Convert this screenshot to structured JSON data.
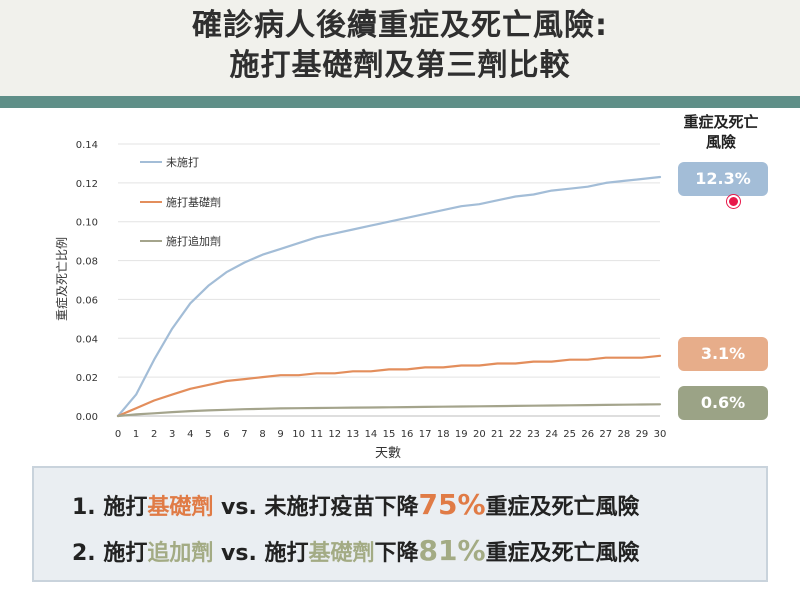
{
  "header": {
    "title_line1": "確診病人後續重症及死亡風險:",
    "title_line2": "施打基礎劑及第三劑比較"
  },
  "risk_panel": {
    "title_line1": "重症及死亡",
    "title_line2": "風險",
    "badges": [
      {
        "label": "12.3%",
        "color": "#a3bdd7"
      },
      {
        "label": "3.1%",
        "color": "#e7ad8a"
      },
      {
        "label": "0.6%",
        "color": "#9ba386"
      }
    ]
  },
  "summary": {
    "line1": {
      "num": "1.",
      "part1": "施打",
      "hl1": "基礎劑",
      "part2": " vs. 未施打疫苗下降",
      "pct": "75%",
      "part3": "重症及死亡風險"
    },
    "line2": {
      "num": "2.",
      "part1": "施打",
      "hl1": "追加劑",
      "part2": " vs. 施打",
      "hl2": "基礎劑",
      "part3": "下降",
      "pct": "81%",
      "part4": "重症及死亡風險"
    }
  },
  "chart_data": {
    "type": "line",
    "title": "",
    "xlabel": "天數",
    "ylabel": "重症及死亡比例",
    "x": [
      0,
      1,
      2,
      3,
      4,
      5,
      6,
      7,
      8,
      9,
      10,
      11,
      12,
      13,
      14,
      15,
      16,
      17,
      18,
      19,
      20,
      21,
      22,
      23,
      24,
      25,
      26,
      27,
      28,
      29,
      30
    ],
    "xlim": [
      0,
      30
    ],
    "ylim": [
      0,
      0.14
    ],
    "yticks": [
      "0.00",
      "0.02",
      "0.04",
      "0.06",
      "0.08",
      "0.10",
      "0.12",
      "0.14"
    ],
    "grid": true,
    "legend_position": "top-left",
    "series": [
      {
        "name": "未施打",
        "color": "#a3bdd7",
        "values": [
          0,
          0.011,
          0.029,
          0.045,
          0.058,
          0.067,
          0.074,
          0.079,
          0.083,
          0.086,
          0.089,
          0.092,
          0.094,
          0.096,
          0.098,
          0.1,
          0.102,
          0.104,
          0.106,
          0.108,
          0.109,
          0.111,
          0.113,
          0.114,
          0.116,
          0.117,
          0.118,
          0.12,
          0.121,
          0.122,
          0.123
        ]
      },
      {
        "name": "施打基礎劑",
        "color": "#e38e5c",
        "values": [
          0,
          0.004,
          0.008,
          0.011,
          0.014,
          0.016,
          0.018,
          0.019,
          0.02,
          0.021,
          0.021,
          0.022,
          0.022,
          0.023,
          0.023,
          0.024,
          0.024,
          0.025,
          0.025,
          0.026,
          0.026,
          0.027,
          0.027,
          0.028,
          0.028,
          0.029,
          0.029,
          0.03,
          0.03,
          0.03,
          0.031
        ]
      },
      {
        "name": "施打追加劑",
        "color": "#a4a48c",
        "values": [
          0,
          0.0008,
          0.0014,
          0.002,
          0.0025,
          0.0029,
          0.0032,
          0.0035,
          0.0037,
          0.0039,
          0.004,
          0.0041,
          0.0042,
          0.0043,
          0.0044,
          0.0045,
          0.0046,
          0.0047,
          0.0048,
          0.0049,
          0.005,
          0.0051,
          0.0052,
          0.0053,
          0.0054,
          0.0055,
          0.0056,
          0.0057,
          0.0058,
          0.0059,
          0.006
        ]
      }
    ]
  }
}
